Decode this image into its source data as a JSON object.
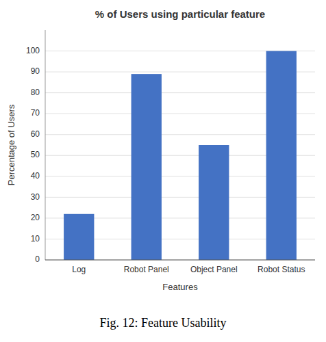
{
  "chart_data": {
    "type": "bar",
    "title": "% of Users using particular feature",
    "xlabel": "Features",
    "ylabel": "Percentage of Users",
    "categories": [
      "Log",
      "Robot Panel",
      "Object Panel",
      "Robot Status"
    ],
    "values": [
      22,
      89,
      55,
      100
    ],
    "color": "#4472C4",
    "ylim": [
      0,
      110
    ],
    "yticks": [
      0,
      10,
      20,
      30,
      40,
      50,
      60,
      70,
      80,
      90,
      100
    ],
    "grid": true,
    "caption": "Fig. 12: Feature Usability"
  }
}
